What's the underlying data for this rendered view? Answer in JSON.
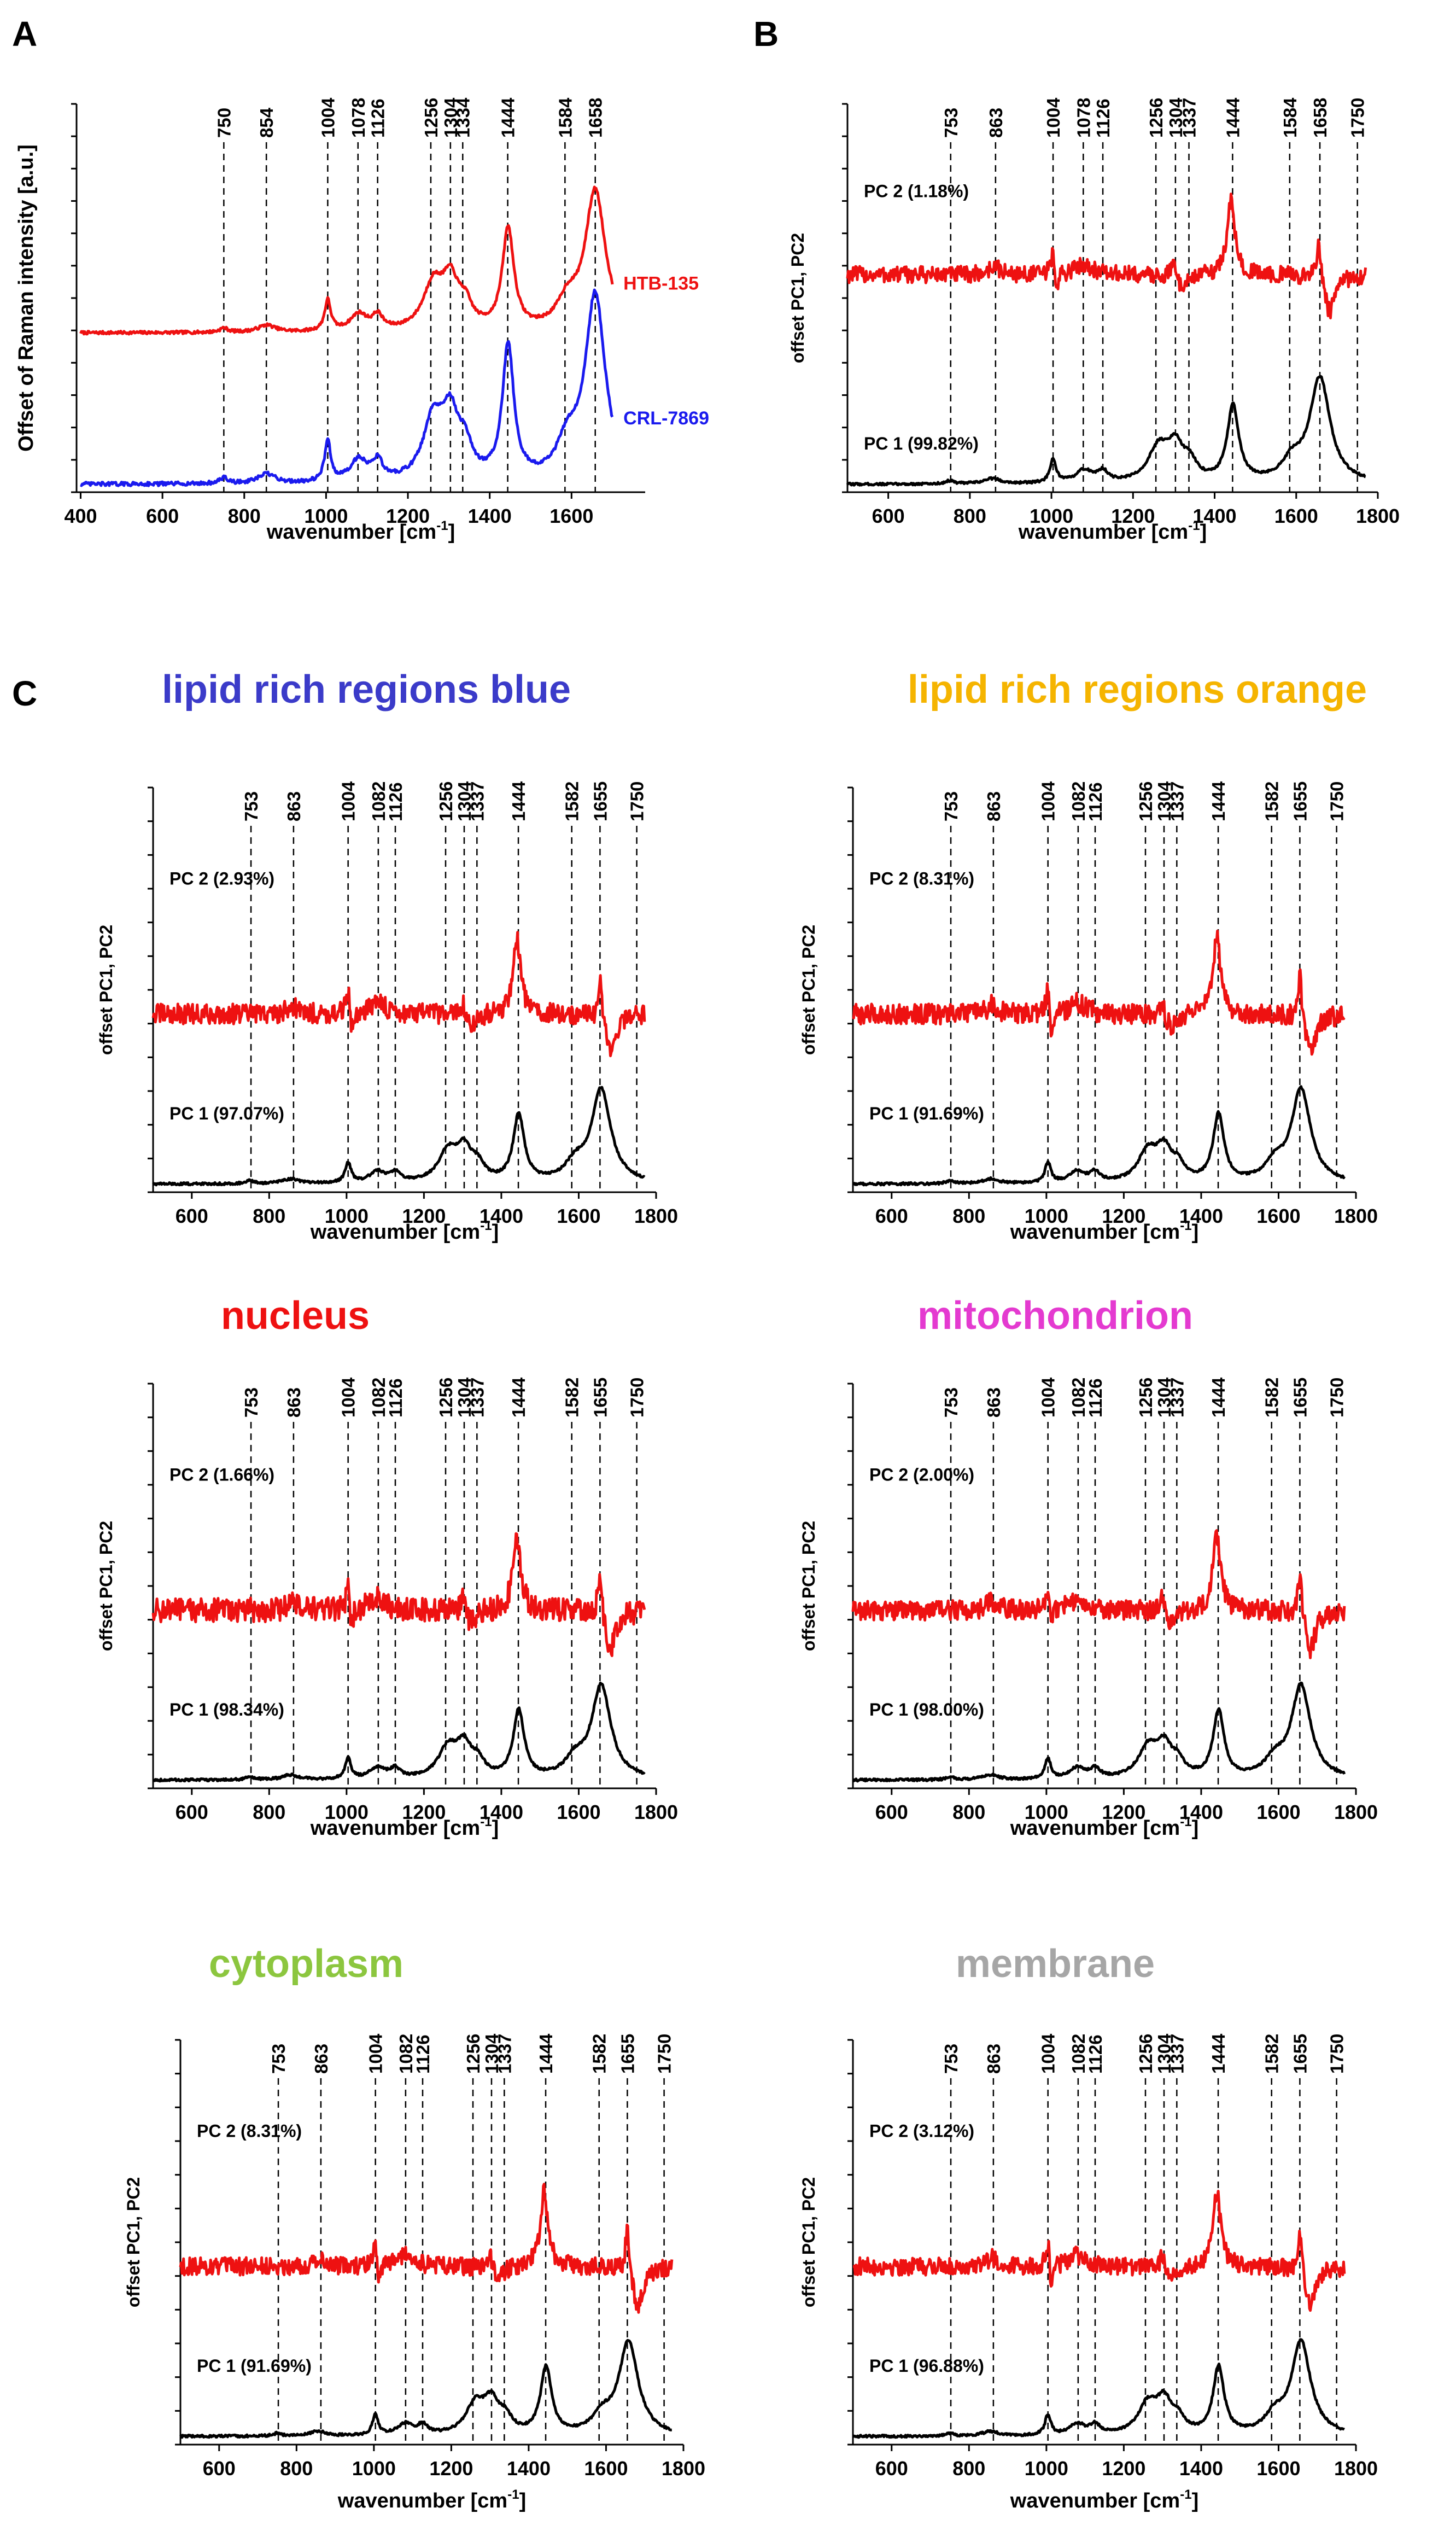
{
  "figure": {
    "panels": [
      {
        "letter": "A"
      },
      {
        "letter": "B"
      },
      {
        "letter": "C"
      }
    ]
  },
  "chart_data": [
    {
      "id": "A",
      "type": "line",
      "title": "",
      "xlabel_main": "wavenumber [cm",
      "xlabel_sup": "-1",
      "xlabel_tail": "]",
      "ylabel": "Offset of Raman intensity [a.u.]",
      "xlim": [
        390,
        1780
      ],
      "xticks": [
        400,
        600,
        800,
        1000,
        1200,
        1400,
        1600
      ],
      "ylim": [
        0,
        10
      ],
      "peak_lines": [
        "750",
        "854",
        "1004",
        "1078",
        "1126",
        "1256",
        "1304",
        "1334",
        "1444",
        "1584",
        "1658"
      ],
      "series": [
        {
          "name": "HTB-135",
          "color": "#ee1111",
          "offset": 4.1,
          "scale": 3.6,
          "noise": 0.04,
          "mode": "raman",
          "label_style": "end",
          "xmin": 400,
          "xmax": 1700
        },
        {
          "name": "CRL-7869",
          "color": "#1a1aee",
          "offset": 0.2,
          "scale": 4.8,
          "noise": 0.05,
          "mode": "raman",
          "label_style": "end",
          "xmin": 400,
          "xmax": 1700
        }
      ]
    },
    {
      "id": "B",
      "type": "line",
      "title": "",
      "xlabel_main": "wavenumber [cm",
      "xlabel_sup": "-1",
      "xlabel_tail": "]",
      "ylabel": "offset PC1, PC2",
      "xlim": [
        500,
        1800
      ],
      "xticks": [
        600,
        800,
        1000,
        1200,
        1400,
        1600,
        1800
      ],
      "ylim": [
        0,
        10
      ],
      "peak_lines": [
        "753",
        "863",
        "1004",
        "1078",
        "1126",
        "1256",
        "1304",
        "1337",
        "1444",
        "1584",
        "1658",
        "1750"
      ],
      "series": [
        {
          "name": "PC 2 (1.18%)",
          "color": "#ee1111",
          "offset": 5.6,
          "scale": 1.0,
          "noise": 0.22,
          "mode": "pc2",
          "label_style": "left",
          "label_y": 7.6,
          "xmin": 500,
          "xmax": 1770
        },
        {
          "name": "PC 1 (99.82%)",
          "color": "#000000",
          "offset": 0.2,
          "scale": 2.7,
          "noise": 0.03,
          "mode": "raman",
          "label_style": "left",
          "label_y": 1.1,
          "xmin": 500,
          "xmax": 1770
        }
      ]
    },
    {
      "id": "C1",
      "type": "line",
      "title": "lipid rich regions blue",
      "title_color": "#3b3bc9",
      "xlabel_main": "wavenumber [cm",
      "xlabel_sup": "-1",
      "xlabel_tail": "]",
      "ylabel": "offset PC1, PC2",
      "xlim": [
        500,
        1800
      ],
      "xticks": [
        600,
        800,
        1000,
        1200,
        1400,
        1600,
        1800
      ],
      "ylim": [
        0,
        10
      ],
      "peak_lines": [
        "753",
        "863",
        "1004",
        "1082",
        "1126",
        "1256",
        "1304",
        "1337",
        "1444",
        "1582",
        "1655",
        "1750"
      ],
      "series": [
        {
          "name": "PC 2 (2.93%)",
          "color": "#ee1111",
          "offset": 4.4,
          "scale": 1.0,
          "noise": 0.25,
          "mode": "pc2",
          "label_style": "left",
          "label_y": 7.6,
          "xmin": 500,
          "xmax": 1770
        },
        {
          "name": "PC 1 (97.07%)",
          "color": "#000000",
          "offset": 0.2,
          "scale": 2.3,
          "noise": 0.03,
          "mode": "raman",
          "label_style": "left",
          "label_y": 1.8,
          "xmin": 500,
          "xmax": 1770
        }
      ]
    },
    {
      "id": "C2",
      "type": "line",
      "title": "lipid rich regions orange",
      "title_color": "#f5b400",
      "xlabel_main": "wavenumber [cm",
      "xlabel_sup": "-1",
      "xlabel_tail": "]",
      "ylabel": "offset PC1, PC2",
      "xlim": [
        500,
        1800
      ],
      "xticks": [
        600,
        800,
        1000,
        1200,
        1400,
        1600,
        1800
      ],
      "ylim": [
        0,
        10
      ],
      "peak_lines": [
        "753",
        "863",
        "1004",
        "1082",
        "1126",
        "1256",
        "1304",
        "1337",
        "1444",
        "1582",
        "1655",
        "1750"
      ],
      "series": [
        {
          "name": "PC 2 (8.31%)",
          "color": "#ee1111",
          "offset": 4.4,
          "scale": 1.0,
          "noise": 0.25,
          "mode": "pc2",
          "label_style": "left",
          "label_y": 7.6,
          "xmin": 500,
          "xmax": 1770
        },
        {
          "name": "PC 1 (91.69%)",
          "color": "#000000",
          "offset": 0.2,
          "scale": 2.3,
          "noise": 0.03,
          "mode": "raman",
          "label_style": "left",
          "label_y": 1.8,
          "xmin": 500,
          "xmax": 1770
        }
      ]
    },
    {
      "id": "C3",
      "type": "line",
      "title": "nucleus",
      "title_color": "#ee1111",
      "xlabel_main": "wavenumber [cm",
      "xlabel_sup": "-1",
      "xlabel_tail": "]",
      "ylabel": "offset PC1, PC2",
      "xlim": [
        500,
        1800
      ],
      "xticks": [
        600,
        800,
        1000,
        1200,
        1400,
        1600,
        1800
      ],
      "ylim": [
        0,
        10
      ],
      "peak_lines": [
        "753",
        "863",
        "1004",
        "1082",
        "1126",
        "1256",
        "1304",
        "1337",
        "1444",
        "1582",
        "1655",
        "1750"
      ],
      "series": [
        {
          "name": "PC 2 (1.66%)",
          "color": "#ee1111",
          "offset": 4.4,
          "scale": 1.0,
          "noise": 0.3,
          "mode": "pc2",
          "label_style": "left",
          "label_y": 7.6,
          "xmin": 500,
          "xmax": 1770
        },
        {
          "name": "PC 1 (98.34%)",
          "color": "#000000",
          "offset": 0.2,
          "scale": 2.3,
          "noise": 0.03,
          "mode": "raman",
          "label_style": "left",
          "label_y": 1.8,
          "xmin": 500,
          "xmax": 1770
        }
      ]
    },
    {
      "id": "C4",
      "type": "line",
      "title": "mitochondrion",
      "title_color": "#e43ad0",
      "xlabel_main": "wavenumber [cm",
      "xlabel_sup": "-1",
      "xlabel_tail": "]",
      "ylabel": "offset PC1, PC2",
      "xlim": [
        500,
        1800
      ],
      "xticks": [
        600,
        800,
        1000,
        1200,
        1400,
        1600,
        1800
      ],
      "ylim": [
        0,
        10
      ],
      "peak_lines": [
        "753",
        "863",
        "1004",
        "1082",
        "1126",
        "1256",
        "1304",
        "1337",
        "1444",
        "1582",
        "1655",
        "1750"
      ],
      "series": [
        {
          "name": "PC 2 (2.00%)",
          "color": "#ee1111",
          "offset": 4.4,
          "scale": 1.0,
          "noise": 0.25,
          "mode": "pc2",
          "label_style": "left",
          "label_y": 7.6,
          "xmin": 500,
          "xmax": 1770
        },
        {
          "name": "PC 1 (98.00%)",
          "color": "#000000",
          "offset": 0.2,
          "scale": 2.3,
          "noise": 0.03,
          "mode": "raman",
          "label_style": "left",
          "label_y": 1.8,
          "xmin": 500,
          "xmax": 1770
        }
      ]
    },
    {
      "id": "C5",
      "type": "line",
      "title": "cytoplasm",
      "title_color": "#8cc63f",
      "xlabel_main": "wavenumber [cm",
      "xlabel_sup": "-1",
      "xlabel_tail": "]",
      "ylabel": "offset PC1, PC2",
      "xlim": [
        500,
        1800
      ],
      "xticks": [
        600,
        800,
        1000,
        1200,
        1400,
        1600,
        1800
      ],
      "ylim": [
        0,
        10
      ],
      "peak_lines": [
        "753",
        "863",
        "1004",
        "1082",
        "1126",
        "1256",
        "1304",
        "1337",
        "1444",
        "1582",
        "1655",
        "1750"
      ],
      "series": [
        {
          "name": "PC 2 (8.31%)",
          "color": "#ee1111",
          "offset": 4.4,
          "scale": 1.0,
          "noise": 0.22,
          "mode": "pc2",
          "label_style": "left",
          "label_y": 7.6,
          "xmin": 500,
          "xmax": 1770
        },
        {
          "name": "PC 1 (91.69%)",
          "color": "#000000",
          "offset": 0.2,
          "scale": 2.3,
          "noise": 0.03,
          "mode": "raman",
          "label_style": "left",
          "label_y": 1.8,
          "xmin": 500,
          "xmax": 1770
        }
      ]
    },
    {
      "id": "C6",
      "type": "line",
      "title": "membrane",
      "title_color": "#a6a6a6",
      "xlabel_main": "wavenumber [cm",
      "xlabel_sup": "-1",
      "xlabel_tail": "]",
      "ylabel": "offset PC1, PC2",
      "xlim": [
        500,
        1800
      ],
      "xticks": [
        600,
        800,
        1000,
        1200,
        1400,
        1600,
        1800
      ],
      "ylim": [
        0,
        10
      ],
      "peak_lines": [
        "753",
        "863",
        "1004",
        "1082",
        "1126",
        "1256",
        "1304",
        "1337",
        "1444",
        "1582",
        "1655",
        "1750"
      ],
      "series": [
        {
          "name": "PC 2 (3.12%)",
          "color": "#ee1111",
          "offset": 4.4,
          "scale": 1.0,
          "noise": 0.22,
          "mode": "pc2",
          "label_style": "left",
          "label_y": 7.6,
          "xmin": 500,
          "xmax": 1770
        },
        {
          "name": "PC 1 (96.88%)",
          "color": "#000000",
          "offset": 0.2,
          "scale": 2.3,
          "noise": 0.03,
          "mode": "raman",
          "label_style": "left",
          "label_y": 1.8,
          "xmin": 500,
          "xmax": 1770
        }
      ]
    }
  ]
}
